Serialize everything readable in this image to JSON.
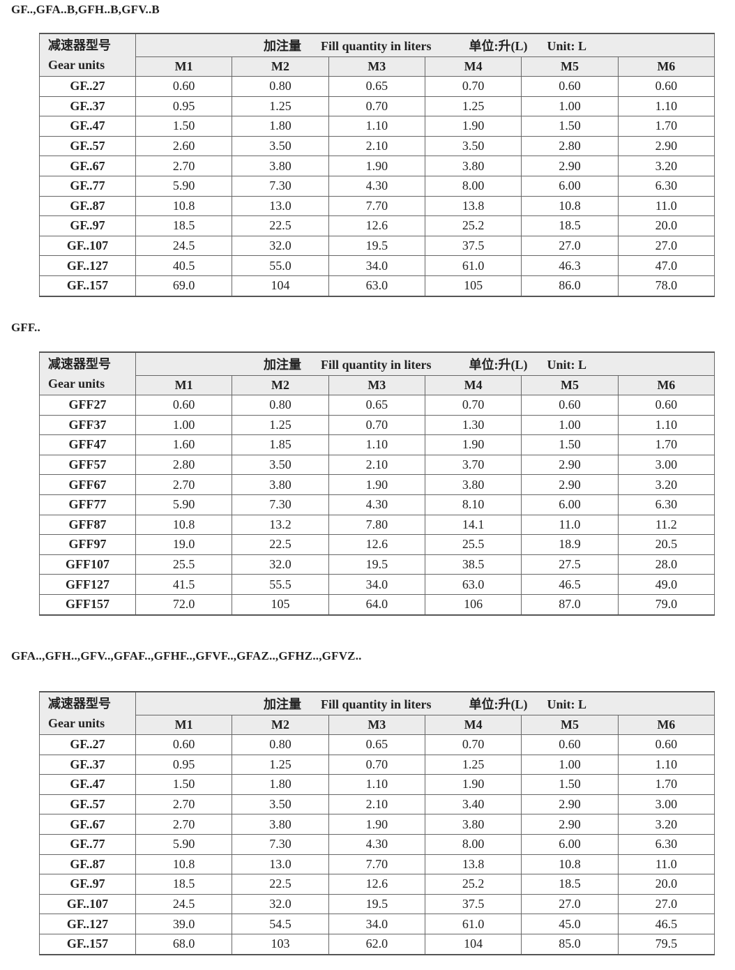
{
  "header": {
    "model_cn": "减速器型号",
    "model_en": "Gear units",
    "fill_cn": "加注量",
    "fill_en": "Fill quantity in liters",
    "unit_cn": "单位:升(L)",
    "unit_en": "Unit: L",
    "columns": [
      "M1",
      "M2",
      "M3",
      "M4",
      "M5",
      "M6"
    ]
  },
  "tables": [
    {
      "title": "GF..,GFA..B,GFH..B,GFV..B",
      "rows": [
        [
          "GF..27",
          "0.60",
          "0.80",
          "0.65",
          "0.70",
          "0.60",
          "0.60"
        ],
        [
          "GF..37",
          "0.95",
          "1.25",
          "0.70",
          "1.25",
          "1.00",
          "1.10"
        ],
        [
          "GF..47",
          "1.50",
          "1.80",
          "1.10",
          "1.90",
          "1.50",
          "1.70"
        ],
        [
          "GF..57",
          "2.60",
          "3.50",
          "2.10",
          "3.50",
          "2.80",
          "2.90"
        ],
        [
          "GF..67",
          "2.70",
          "3.80",
          "1.90",
          "3.80",
          "2.90",
          "3.20"
        ],
        [
          "GF..77",
          "5.90",
          "7.30",
          "4.30",
          "8.00",
          "6.00",
          "6.30"
        ],
        [
          "GF..87",
          "10.8",
          "13.0",
          "7.70",
          "13.8",
          "10.8",
          "11.0"
        ],
        [
          "GF..97",
          "18.5",
          "22.5",
          "12.6",
          "25.2",
          "18.5",
          "20.0"
        ],
        [
          "GF..107",
          "24.5",
          "32.0",
          "19.5",
          "37.5",
          "27.0",
          "27.0"
        ],
        [
          "GF..127",
          "40.5",
          "55.0",
          "34.0",
          "61.0",
          "46.3",
          "47.0"
        ],
        [
          "GF..157",
          "69.0",
          "104",
          "63.0",
          "105",
          "86.0",
          "78.0"
        ]
      ]
    },
    {
      "title": "GFF..",
      "rows": [
        [
          "GFF27",
          "0.60",
          "0.80",
          "0.65",
          "0.70",
          "0.60",
          "0.60"
        ],
        [
          "GFF37",
          "1.00",
          "1.25",
          "0.70",
          "1.30",
          "1.00",
          "1.10"
        ],
        [
          "GFF47",
          "1.60",
          "1.85",
          "1.10",
          "1.90",
          "1.50",
          "1.70"
        ],
        [
          "GFF57",
          "2.80",
          "3.50",
          "2.10",
          "3.70",
          "2.90",
          "3.00"
        ],
        [
          "GFF67",
          "2.70",
          "3.80",
          "1.90",
          "3.80",
          "2.90",
          "3.20"
        ],
        [
          "GFF77",
          "5.90",
          "7.30",
          "4.30",
          "8.10",
          "6.00",
          "6.30"
        ],
        [
          "GFF87",
          "10.8",
          "13.2",
          "7.80",
          "14.1",
          "11.0",
          "11.2"
        ],
        [
          "GFF97",
          "19.0",
          "22.5",
          "12.6",
          "25.5",
          "18.9",
          "20.5"
        ],
        [
          "GFF107",
          "25.5",
          "32.0",
          "19.5",
          "38.5",
          "27.5",
          "28.0"
        ],
        [
          "GFF127",
          "41.5",
          "55.5",
          "34.0",
          "63.0",
          "46.5",
          "49.0"
        ],
        [
          "GFF157",
          "72.0",
          "105",
          "64.0",
          "106",
          "87.0",
          "79.0"
        ]
      ]
    },
    {
      "title": "GFA..,GFH..,GFV..,GFAF..,GFHF..,GFVF..,GFAZ..,GFHZ..,GFVZ..",
      "rows": [
        [
          "GF..27",
          "0.60",
          "0.80",
          "0.65",
          "0.70",
          "0.60",
          "0.60"
        ],
        [
          "GF..37",
          "0.95",
          "1.25",
          "0.70",
          "1.25",
          "1.00",
          "1.10"
        ],
        [
          "GF..47",
          "1.50",
          "1.80",
          "1.10",
          "1.90",
          "1.50",
          "1.70"
        ],
        [
          "GF..57",
          "2.70",
          "3.50",
          "2.10",
          "3.40",
          "2.90",
          "3.00"
        ],
        [
          "GF..67",
          "2.70",
          "3.80",
          "1.90",
          "3.80",
          "2.90",
          "3.20"
        ],
        [
          "GF..77",
          "5.90",
          "7.30",
          "4.30",
          "8.00",
          "6.00",
          "6.30"
        ],
        [
          "GF..87",
          "10.8",
          "13.0",
          "7.70",
          "13.8",
          "10.8",
          "11.0"
        ],
        [
          "GF..97",
          "18.5",
          "22.5",
          "12.6",
          "25.2",
          "18.5",
          "20.0"
        ],
        [
          "GF..107",
          "24.5",
          "32.0",
          "19.5",
          "37.5",
          "27.0",
          "27.0"
        ],
        [
          "GF..127",
          "39.0",
          "54.5",
          "34.0",
          "61.0",
          "45.0",
          "46.5"
        ],
        [
          "GF..157",
          "68.0",
          "103",
          "62.0",
          "104",
          "85.0",
          "79.5"
        ]
      ]
    }
  ]
}
